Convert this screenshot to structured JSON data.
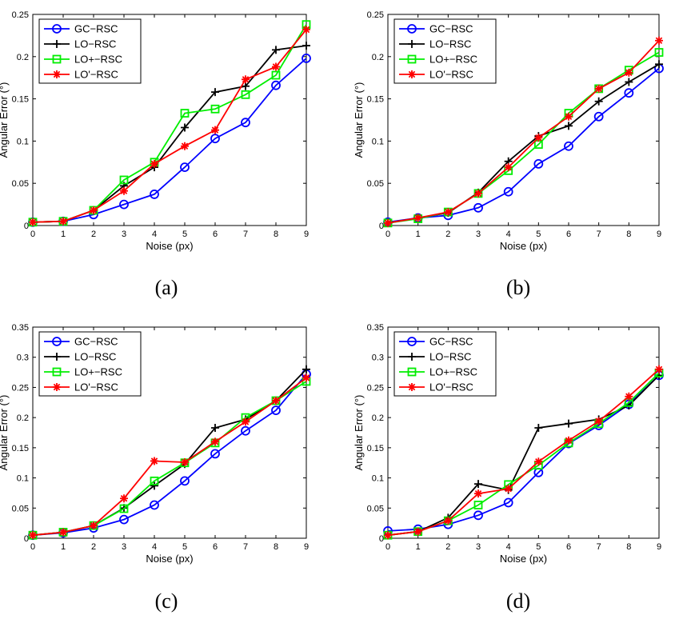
{
  "chart_data": [
    {
      "type": "line",
      "caption": "(a)",
      "xlabel": "Noise (px)",
      "ylabel": "Angular Error (°)",
      "xlim": [
        0,
        9
      ],
      "ylim": [
        0,
        0.25
      ],
      "xticks": [
        "0",
        "1",
        "2",
        "3",
        "4",
        "5",
        "6",
        "7",
        "8",
        "9"
      ],
      "yticks": [
        "0",
        "0.05",
        "0.1",
        "0.15",
        "0.2",
        "0.25"
      ],
      "x": [
        0,
        1,
        2,
        3,
        4,
        5,
        6,
        7,
        8,
        9
      ],
      "series": [
        {
          "name": "GC−RSC",
          "color": "#0000ff",
          "marker": "circle",
          "values": [
            0.004,
            0.005,
            0.013,
            0.025,
            0.037,
            0.069,
            0.103,
            0.122,
            0.166,
            0.198
          ]
        },
        {
          "name": "LO−RSC",
          "color": "#000000",
          "marker": "plus",
          "values": [
            0.004,
            0.005,
            0.018,
            0.047,
            0.069,
            0.116,
            0.158,
            0.165,
            0.208,
            0.213
          ]
        },
        {
          "name": "LO+−RSC",
          "color": "#00ee00",
          "marker": "square",
          "values": [
            0.004,
            0.005,
            0.018,
            0.054,
            0.075,
            0.133,
            0.138,
            0.155,
            0.178,
            0.238
          ]
        },
        {
          "name": "LO'−RSC",
          "color": "#ff0000",
          "marker": "star",
          "values": [
            0.004,
            0.005,
            0.018,
            0.041,
            0.073,
            0.094,
            0.113,
            0.173,
            0.188,
            0.232
          ]
        }
      ]
    },
    {
      "type": "line",
      "caption": "(b)",
      "xlabel": "Noise (px)",
      "ylabel": "Angular Error (°)",
      "xlim": [
        0,
        9
      ],
      "ylim": [
        0,
        0.25
      ],
      "xticks": [
        "0",
        "1",
        "2",
        "3",
        "4",
        "5",
        "6",
        "7",
        "8",
        "9"
      ],
      "yticks": [
        "0",
        "0.05",
        "0.1",
        "0.15",
        "0.2",
        "0.25"
      ],
      "x": [
        0,
        1,
        2,
        3,
        4,
        5,
        6,
        7,
        8,
        9
      ],
      "series": [
        {
          "name": "GC−RSC",
          "color": "#0000ff",
          "marker": "circle",
          "values": [
            0.004,
            0.009,
            0.012,
            0.021,
            0.04,
            0.073,
            0.094,
            0.129,
            0.157,
            0.186
          ]
        },
        {
          "name": "LO−RSC",
          "color": "#000000",
          "marker": "plus",
          "values": [
            0.003,
            0.009,
            0.015,
            0.039,
            0.076,
            0.106,
            0.118,
            0.147,
            0.17,
            0.191
          ]
        },
        {
          "name": "LO+−RSC",
          "color": "#00ee00",
          "marker": "square",
          "values": [
            0.003,
            0.008,
            0.016,
            0.038,
            0.065,
            0.096,
            0.133,
            0.162,
            0.184,
            0.205
          ]
        },
        {
          "name": "LO'−RSC",
          "color": "#ff0000",
          "marker": "star",
          "values": [
            0.003,
            0.009,
            0.016,
            0.038,
            0.069,
            0.104,
            0.129,
            0.162,
            0.181,
            0.219
          ]
        }
      ]
    },
    {
      "type": "line",
      "caption": "(c)",
      "xlabel": "Noise (px)",
      "ylabel": "Angular Error (°)",
      "xlim": [
        0,
        9
      ],
      "ylim": [
        0,
        0.35
      ],
      "xticks": [
        "0",
        "1",
        "2",
        "3",
        "4",
        "5",
        "6",
        "7",
        "8",
        "9"
      ],
      "yticks": [
        "0",
        "0.05",
        "0.1",
        "0.15",
        "0.2",
        "0.25",
        "0.3",
        "0.35"
      ],
      "x": [
        0,
        1,
        2,
        3,
        4,
        5,
        6,
        7,
        8,
        9
      ],
      "series": [
        {
          "name": "GC−RSC",
          "color": "#0000ff",
          "marker": "circle",
          "values": [
            0.005,
            0.009,
            0.017,
            0.031,
            0.055,
            0.095,
            0.14,
            0.178,
            0.212,
            0.272
          ]
        },
        {
          "name": "LO−RSC",
          "color": "#000000",
          "marker": "plus",
          "values": [
            0.005,
            0.01,
            0.021,
            0.05,
            0.087,
            0.123,
            0.183,
            0.197,
            0.228,
            0.28
          ]
        },
        {
          "name": "LO+−RSC",
          "color": "#00ee00",
          "marker": "square",
          "values": [
            0.005,
            0.01,
            0.021,
            0.049,
            0.095,
            0.125,
            0.158,
            0.2,
            0.228,
            0.26
          ]
        },
        {
          "name": "LO'−RSC",
          "color": "#ff0000",
          "marker": "star",
          "values": [
            0.005,
            0.01,
            0.021,
            0.066,
            0.128,
            0.126,
            0.16,
            0.193,
            0.228,
            0.266
          ]
        }
      ]
    },
    {
      "type": "line",
      "caption": "(d)",
      "xlabel": "Noise (px)",
      "ylabel": "Angular Error (°)",
      "xlim": [
        0,
        9
      ],
      "ylim": [
        0,
        0.35
      ],
      "xticks": [
        "0",
        "1",
        "2",
        "3",
        "4",
        "5",
        "6",
        "7",
        "8",
        "9"
      ],
      "yticks": [
        "0",
        "0.05",
        "0.1",
        "0.15",
        "0.2",
        "0.25",
        "0.3",
        "0.35"
      ],
      "x": [
        0,
        1,
        2,
        3,
        4,
        5,
        6,
        7,
        8,
        9
      ],
      "series": [
        {
          "name": "GC−RSC",
          "color": "#0000ff",
          "marker": "circle",
          "values": [
            0.012,
            0.015,
            0.023,
            0.038,
            0.059,
            0.109,
            0.157,
            0.187,
            0.222,
            0.27
          ]
        },
        {
          "name": "LO−RSC",
          "color": "#000000",
          "marker": "plus",
          "values": [
            0.005,
            0.011,
            0.034,
            0.09,
            0.08,
            0.183,
            0.19,
            0.197,
            0.22,
            0.27
          ]
        },
        {
          "name": "LO+−RSC",
          "color": "#00ee00",
          "marker": "square",
          "values": [
            0.005,
            0.011,
            0.029,
            0.055,
            0.089,
            0.121,
            0.158,
            0.19,
            0.225,
            0.274
          ]
        },
        {
          "name": "LO'−RSC",
          "color": "#ff0000",
          "marker": "star",
          "values": [
            0.005,
            0.011,
            0.029,
            0.074,
            0.082,
            0.127,
            0.162,
            0.194,
            0.235,
            0.28
          ]
        }
      ]
    }
  ]
}
